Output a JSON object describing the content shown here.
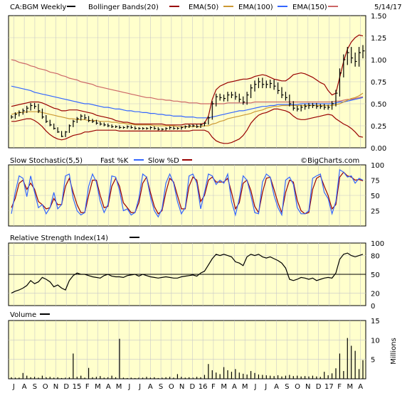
{
  "header": {
    "symbol": "CA:BGM Weekly",
    "date": "5/14/17",
    "legend": [
      {
        "label": "Bollinger Bands(20)",
        "color": "#000000"
      },
      {
        "label": "EMA(50)",
        "color": "#990000"
      },
      {
        "label": "EMA(100)",
        "color": "#cc9933"
      },
      {
        "label": "EMA(150)",
        "color": "#3366ff"
      },
      {
        "label": "",
        "color": "#cc6666"
      }
    ]
  },
  "colors": {
    "panel_bg": "#ffffcc",
    "grid": "#c8c8c8",
    "price": "#000000",
    "bollinger": "#990000",
    "ema50": "#cc9933",
    "ema100": "#3366ff",
    "ema150": "#cc6666",
    "fast_k": "#3366ff",
    "slow_d": "#990000"
  },
  "chart_data": {
    "type": "line",
    "x_labels": [
      "J",
      "A",
      "S",
      "O",
      "N",
      "D",
      "15",
      "F",
      "M",
      "A",
      "M",
      "J",
      "J",
      "A",
      "S",
      "O",
      "N",
      "D",
      "16",
      "F",
      "M",
      "A",
      "M",
      "J",
      "J",
      "A",
      "S",
      "O",
      "N",
      "D",
      "17",
      "F",
      "M",
      "A"
    ],
    "panels": {
      "price": {
        "ylim": [
          0,
          1.5
        ],
        "yticks": [
          "1.50",
          "1.25",
          "1.00",
          "0.75",
          "0.50",
          "0.25",
          "0.00"
        ],
        "close": [
          0.35,
          0.38,
          0.4,
          0.42,
          0.45,
          0.48,
          0.47,
          0.42,
          0.35,
          0.3,
          0.26,
          0.22,
          0.18,
          0.13,
          0.18,
          0.25,
          0.3,
          0.33,
          0.36,
          0.34,
          0.31,
          0.3,
          0.28,
          0.27,
          0.26,
          0.25,
          0.24,
          0.24,
          0.23,
          0.23,
          0.24,
          0.23,
          0.22,
          0.22,
          0.22,
          0.22,
          0.23,
          0.22,
          0.21,
          0.21,
          0.22,
          0.23,
          0.22,
          0.22,
          0.23,
          0.24,
          0.25,
          0.25,
          0.24,
          0.26,
          0.28,
          0.34,
          0.5,
          0.58,
          0.57,
          0.56,
          0.6,
          0.6,
          0.58,
          0.55,
          0.52,
          0.6,
          0.68,
          0.72,
          0.75,
          0.72,
          0.72,
          0.73,
          0.7,
          0.65,
          0.6,
          0.57,
          0.5,
          0.45,
          0.44,
          0.46,
          0.47,
          0.48,
          0.48,
          0.47,
          0.47,
          0.46,
          0.46,
          0.5,
          0.62,
          0.85,
          1.0,
          1.08,
          1.02,
          0.98,
          1.08,
          1.1
        ],
        "bb_upper": [
          0.47,
          0.48,
          0.49,
          0.5,
          0.51,
          0.52,
          0.52,
          0.52,
          0.51,
          0.49,
          0.47,
          0.45,
          0.44,
          0.42,
          0.42,
          0.43,
          0.43,
          0.43,
          0.42,
          0.41,
          0.4,
          0.39,
          0.37,
          0.36,
          0.35,
          0.34,
          0.33,
          0.31,
          0.3,
          0.29,
          0.29,
          0.28,
          0.27,
          0.27,
          0.27,
          0.27,
          0.27,
          0.27,
          0.27,
          0.27,
          0.26,
          0.26,
          0.26,
          0.26,
          0.26,
          0.27,
          0.27,
          0.27,
          0.27,
          0.27,
          0.28,
          0.36,
          0.55,
          0.66,
          0.7,
          0.72,
          0.74,
          0.75,
          0.76,
          0.77,
          0.78,
          0.78,
          0.79,
          0.81,
          0.82,
          0.83,
          0.82,
          0.8,
          0.78,
          0.77,
          0.76,
          0.76,
          0.79,
          0.83,
          0.84,
          0.85,
          0.84,
          0.82,
          0.8,
          0.77,
          0.74,
          0.72,
          0.65,
          0.6,
          0.62,
          0.8,
          0.98,
          1.12,
          1.2,
          1.25,
          1.28,
          1.27
        ],
        "bb_lower": [
          0.3,
          0.3,
          0.31,
          0.32,
          0.33,
          0.33,
          0.31,
          0.28,
          0.24,
          0.19,
          0.15,
          0.12,
          0.1,
          0.09,
          0.1,
          0.12,
          0.14,
          0.15,
          0.16,
          0.18,
          0.18,
          0.19,
          0.2,
          0.2,
          0.2,
          0.2,
          0.2,
          0.2,
          0.19,
          0.19,
          0.19,
          0.19,
          0.19,
          0.19,
          0.19,
          0.19,
          0.19,
          0.19,
          0.19,
          0.19,
          0.19,
          0.19,
          0.19,
          0.19,
          0.19,
          0.19,
          0.19,
          0.2,
          0.2,
          0.2,
          0.2,
          0.18,
          0.12,
          0.08,
          0.06,
          0.05,
          0.05,
          0.06,
          0.08,
          0.1,
          0.14,
          0.2,
          0.28,
          0.33,
          0.37,
          0.39,
          0.4,
          0.42,
          0.44,
          0.44,
          0.43,
          0.42,
          0.4,
          0.36,
          0.33,
          0.32,
          0.32,
          0.33,
          0.34,
          0.35,
          0.36,
          0.37,
          0.38,
          0.37,
          0.33,
          0.3,
          0.27,
          0.25,
          0.22,
          0.18,
          0.13,
          0.12
        ],
        "ema50": [
          0.38,
          0.39,
          0.4,
          0.4,
          0.41,
          0.41,
          0.41,
          0.41,
          0.4,
          0.39,
          0.38,
          0.37,
          0.36,
          0.35,
          0.34,
          0.33,
          0.33,
          0.32,
          0.32,
          0.32,
          0.31,
          0.31,
          0.31,
          0.3,
          0.3,
          0.3,
          0.29,
          0.29,
          0.28,
          0.28,
          0.27,
          0.27,
          0.26,
          0.26,
          0.26,
          0.26,
          0.26,
          0.25,
          0.25,
          0.25,
          0.25,
          0.25,
          0.25,
          0.24,
          0.24,
          0.24,
          0.24,
          0.24,
          0.24,
          0.24,
          0.25,
          0.25,
          0.27,
          0.28,
          0.3,
          0.31,
          0.33,
          0.34,
          0.35,
          0.36,
          0.37,
          0.38,
          0.39,
          0.41,
          0.42,
          0.43,
          0.45,
          0.46,
          0.47,
          0.47,
          0.48,
          0.48,
          0.48,
          0.48,
          0.48,
          0.48,
          0.48,
          0.48,
          0.48,
          0.48,
          0.48,
          0.48,
          0.48,
          0.48,
          0.49,
          0.5,
          0.52,
          0.54,
          0.56,
          0.57,
          0.59,
          0.62
        ],
        "ema100": [
          0.7,
          0.69,
          0.68,
          0.67,
          0.66,
          0.65,
          0.63,
          0.62,
          0.61,
          0.6,
          0.59,
          0.58,
          0.57,
          0.56,
          0.55,
          0.54,
          0.53,
          0.52,
          0.51,
          0.5,
          0.5,
          0.49,
          0.48,
          0.47,
          0.46,
          0.46,
          0.45,
          0.44,
          0.44,
          0.43,
          0.42,
          0.42,
          0.41,
          0.41,
          0.4,
          0.4,
          0.39,
          0.39,
          0.38,
          0.38,
          0.37,
          0.37,
          0.36,
          0.36,
          0.36,
          0.35,
          0.35,
          0.35,
          0.34,
          0.34,
          0.34,
          0.34,
          0.35,
          0.36,
          0.37,
          0.38,
          0.39,
          0.4,
          0.41,
          0.42,
          0.42,
          0.43,
          0.44,
          0.45,
          0.46,
          0.47,
          0.47,
          0.48,
          0.48,
          0.49,
          0.49,
          0.49,
          0.49,
          0.49,
          0.49,
          0.5,
          0.5,
          0.5,
          0.5,
          0.5,
          0.5,
          0.5,
          0.5,
          0.5,
          0.51,
          0.52,
          0.52,
          0.53,
          0.54,
          0.55,
          0.56,
          0.57
        ],
        "ema150": [
          1.0,
          0.99,
          0.97,
          0.96,
          0.95,
          0.93,
          0.92,
          0.9,
          0.89,
          0.88,
          0.86,
          0.85,
          0.84,
          0.82,
          0.81,
          0.79,
          0.78,
          0.77,
          0.75,
          0.74,
          0.73,
          0.72,
          0.7,
          0.69,
          0.68,
          0.67,
          0.66,
          0.65,
          0.64,
          0.63,
          0.62,
          0.61,
          0.6,
          0.59,
          0.58,
          0.57,
          0.57,
          0.56,
          0.55,
          0.55,
          0.54,
          0.54,
          0.53,
          0.53,
          0.52,
          0.52,
          0.51,
          0.51,
          0.51,
          0.5,
          0.5,
          0.5,
          0.5,
          0.5,
          0.5,
          0.5,
          0.51,
          0.51,
          0.51,
          0.51,
          0.51,
          0.51,
          0.51,
          0.52,
          0.52,
          0.52,
          0.52,
          0.52,
          0.52,
          0.52,
          0.52,
          0.52,
          0.52,
          0.52,
          0.52,
          0.52,
          0.52,
          0.52,
          0.52,
          0.52,
          0.52,
          0.52,
          0.52,
          0.52,
          0.53,
          0.53,
          0.54,
          0.55,
          0.55,
          0.56,
          0.57,
          0.58
        ]
      },
      "stochastic": {
        "title": "Slow Stochastic(5,5)",
        "legend": [
          "Fast %K",
          "Slow %D"
        ],
        "ylim": [
          0,
          100
        ],
        "yticks": [
          "100",
          "75",
          "50",
          "25"
        ],
        "fast_k": [
          20,
          55,
          82,
          78,
          48,
          82,
          55,
          30,
          35,
          20,
          30,
          55,
          28,
          35,
          82,
          85,
          45,
          25,
          18,
          22,
          65,
          85,
          72,
          40,
          22,
          35,
          82,
          80,
          58,
          25,
          28,
          18,
          22,
          45,
          85,
          80,
          48,
          25,
          15,
          28,
          70,
          85,
          70,
          40,
          20,
          30,
          82,
          85,
          70,
          28,
          55,
          85,
          82,
          68,
          75,
          70,
          85,
          40,
          18,
          45,
          82,
          75,
          50,
          22,
          20,
          72,
          85,
          80,
          50,
          30,
          18,
          75,
          80,
          68,
          30,
          20,
          20,
          25,
          78,
          82,
          85,
          55,
          45,
          20,
          40,
          92,
          88,
          80,
          82,
          70,
          78,
          75
        ],
        "slow_d": [
          30,
          45,
          70,
          75,
          60,
          70,
          60,
          40,
          35,
          28,
          30,
          45,
          35,
          35,
          65,
          78,
          55,
          35,
          22,
          22,
          50,
          75,
          75,
          50,
          30,
          32,
          65,
          78,
          65,
          38,
          30,
          22,
          22,
          38,
          70,
          80,
          55,
          32,
          20,
          25,
          55,
          78,
          72,
          50,
          28,
          28,
          65,
          80,
          75,
          40,
          50,
          75,
          80,
          72,
          72,
          72,
          78,
          55,
          28,
          38,
          70,
          75,
          58,
          32,
          22,
          55,
          78,
          80,
          60,
          38,
          22,
          55,
          75,
          72,
          42,
          25,
          20,
          22,
          60,
          78,
          82,
          65,
          50,
          28,
          35,
          80,
          88,
          82,
          80,
          75,
          76,
          74
        ]
      },
      "rsi": {
        "title": "Relative Strength Index(14)",
        "ylim": [
          0,
          100
        ],
        "yticks": [
          "100",
          "80",
          "50",
          "20",
          "0"
        ],
        "reference": 50,
        "values": [
          20,
          23,
          25,
          28,
          32,
          40,
          35,
          38,
          45,
          42,
          38,
          30,
          33,
          28,
          25,
          40,
          48,
          52,
          50,
          50,
          48,
          46,
          45,
          44,
          48,
          50,
          47,
          46,
          46,
          45,
          48,
          49,
          50,
          47,
          50,
          48,
          46,
          45,
          44,
          45,
          46,
          45,
          44,
          44,
          46,
          47,
          48,
          49,
          47,
          52,
          55,
          65,
          75,
          82,
          80,
          82,
          80,
          78,
          70,
          68,
          64,
          78,
          82,
          80,
          82,
          78,
          76,
          78,
          75,
          72,
          68,
          60,
          42,
          40,
          42,
          45,
          44,
          42,
          44,
          40,
          42,
          44,
          45,
          44,
          52,
          74,
          82,
          84,
          80,
          78,
          80,
          82
        ]
      },
      "volume": {
        "title": "Volume",
        "units": "Millions",
        "ylim": [
          0,
          15
        ],
        "yticks": [
          "15",
          "10",
          "5"
        ],
        "values": [
          0.4,
          0.3,
          0.3,
          1.5,
          0.8,
          0.4,
          0.5,
          0.3,
          0.8,
          0.4,
          0.5,
          0.3,
          0.4,
          0.2,
          0.3,
          0.4,
          6.5,
          0.5,
          0.8,
          0.3,
          2.8,
          0.4,
          0.5,
          0.7,
          0.3,
          0.4,
          0.8,
          0.4,
          10.3,
          0.3,
          0.2,
          0.3,
          0.2,
          0.3,
          0.3,
          0.5,
          0.3,
          0.4,
          0.2,
          0.3,
          0.4,
          0.5,
          0.3,
          1.2,
          0.5,
          0.3,
          0.4,
          0.3,
          0.5,
          0.4,
          1.0,
          3.8,
          2.2,
          1.6,
          1.2,
          3.0,
          2.2,
          1.8,
          2.5,
          1.6,
          1.3,
          1.1,
          2.0,
          1.5,
          1.1,
          1.0,
          0.9,
          0.8,
          0.7,
          0.9,
          0.6,
          0.8,
          1.0,
          0.7,
          0.8,
          0.6,
          0.7,
          0.6,
          0.8,
          0.6,
          0.5,
          1.8,
          0.9,
          1.4,
          2.7,
          6.5,
          2.0,
          10.5,
          8.5,
          7.2,
          2.5,
          4.8
        ]
      }
    }
  },
  "watermark": "©BigCharts.com"
}
